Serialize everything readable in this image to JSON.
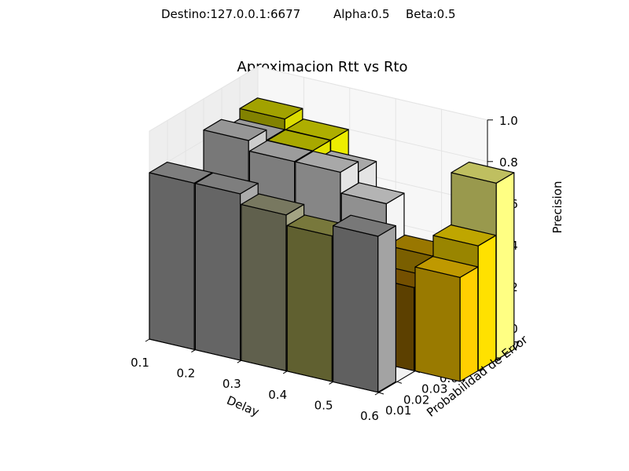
{
  "suptitle": {
    "destino": "Destino:127.0.0.1:6677",
    "alpha": "Alpha:0.5",
    "beta": "Beta:0.5"
  },
  "chart_data": {
    "type": "bar3d",
    "title": "Aproximacion Rtt vs Rto",
    "xlabel": "Delay",
    "ylabel": "Probabilidad de Error",
    "zlabel": "Precision",
    "x_ticks": [
      "0.1",
      "0.2",
      "0.3",
      "0.4",
      "0.5",
      "0.6"
    ],
    "y_ticks": [
      "0.01",
      "0.02",
      "0.03",
      "0.04",
      "0.05",
      "0.06",
      "0.07"
    ],
    "z_ticks": [
      "0.0",
      "0.2",
      "0.4",
      "0.6",
      "0.8",
      "1.0"
    ],
    "xlim": [
      0.1,
      0.6
    ],
    "ylim": [
      0.01,
      0.07
    ],
    "zlim": [
      0.0,
      1.0
    ],
    "grid": true,
    "bars": [
      {
        "x": 0.1,
        "y": 0.06,
        "z": 0.85,
        "color": "#d8d800"
      },
      {
        "x": 0.2,
        "y": 0.06,
        "z": 0.8,
        "color": "#e8e800"
      },
      {
        "x": 0.1,
        "y": 0.05,
        "z": 0.8,
        "color": "#d0d0d0"
      },
      {
        "x": 0.2,
        "y": 0.05,
        "z": 0.8,
        "color": "#e0e000"
      },
      {
        "x": 0.3,
        "y": 0.05,
        "z": 0.75,
        "color": "#e0e0e0"
      },
      {
        "x": 0.1,
        "y": 0.04,
        "z": 0.85,
        "color": "#c8c8c8"
      },
      {
        "x": 0.2,
        "y": 0.04,
        "z": 0.8,
        "color": "#d0d0d0"
      },
      {
        "x": 0.3,
        "y": 0.04,
        "z": 0.8,
        "color": "#e0e0e0"
      },
      {
        "x": 0.4,
        "y": 0.04,
        "z": 0.7,
        "color": "#f0f0f0"
      },
      {
        "x": 0.5,
        "y": 0.03,
        "z": 0.4,
        "color": "#9a6a00"
      },
      {
        "x": 0.5,
        "y": 0.04,
        "z": 0.5,
        "color": "#cc9e00"
      },
      {
        "x": 0.6,
        "y": 0.03,
        "z": 0.5,
        "color": "#ffcc00"
      },
      {
        "x": 0.6,
        "y": 0.04,
        "z": 0.6,
        "color": "#ffdd00"
      },
      {
        "x": 0.6,
        "y": 0.05,
        "z": 0.85,
        "color": "#ffff80"
      },
      {
        "x": 0.1,
        "y": 0.01,
        "z": 0.8,
        "color": "#a8a8a8"
      },
      {
        "x": 0.2,
        "y": 0.01,
        "z": 0.8,
        "color": "#a8a8a8"
      },
      {
        "x": 0.3,
        "y": 0.01,
        "z": 0.75,
        "color": "#a0a080"
      },
      {
        "x": 0.4,
        "y": 0.01,
        "z": 0.7,
        "color": "#a0a050"
      },
      {
        "x": 0.5,
        "y": 0.01,
        "z": 0.75,
        "color": "#a0a0a0"
      }
    ]
  }
}
